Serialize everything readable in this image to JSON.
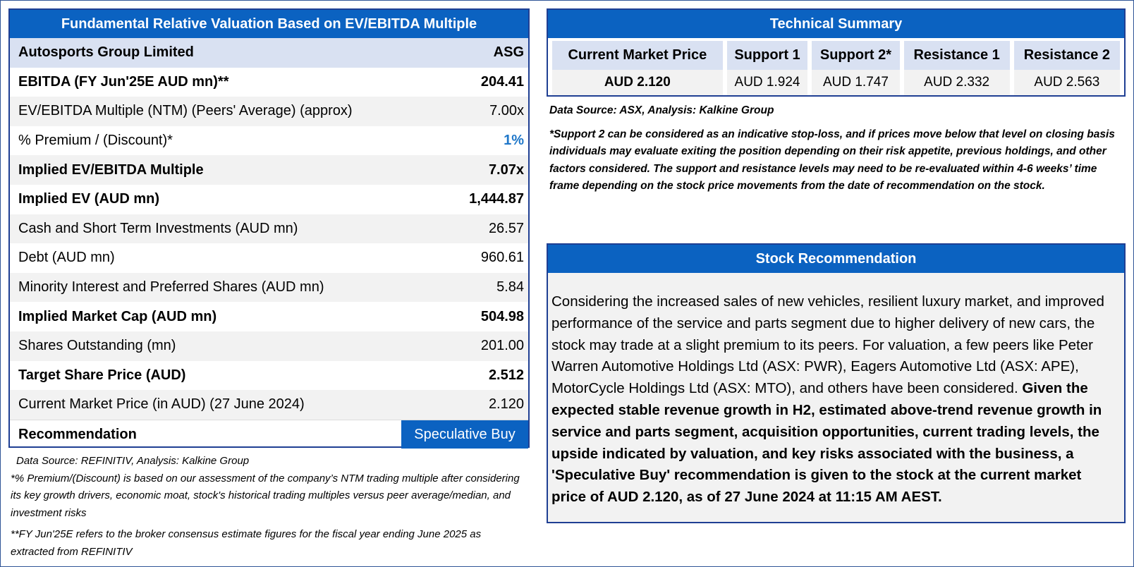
{
  "valuation": {
    "title": "Fundamental Relative Valuation Based on EV/EBITDA Multiple",
    "company": {
      "name": "Autosports Group Limited",
      "ticker": "ASG"
    },
    "rows": [
      {
        "label": "EBITDA (FY Jun'25E AUD mn)**",
        "value": "204.41"
      },
      {
        "label": "EV/EBITDA Multiple (NTM)  (Peers' Average) (approx)",
        "value": "7.00x"
      },
      {
        "label": "% Premium / (Discount)*",
        "value": "1%"
      },
      {
        "label": "Implied EV/EBITDA Multiple",
        "value": "7.07x"
      },
      {
        "label": "Implied EV (AUD mn)",
        "value": "1,444.87"
      },
      {
        "label": "Cash and Short Term Investments (AUD mn)",
        "value": "26.57"
      },
      {
        "label": "Debt (AUD mn)",
        "value": "960.61"
      },
      {
        "label": "Minority Interest and Preferred Shares (AUD mn)",
        "value": "5.84"
      },
      {
        "label": "Implied Market Cap (AUD mn)",
        "value": "504.98"
      },
      {
        "label": "Shares Outstanding (mn)",
        "value": "201.00"
      },
      {
        "label": "Target Share Price (AUD)",
        "value": "2.512"
      },
      {
        "label": "Current Market Price (in AUD) (27 June 2024)",
        "value": "2.120"
      }
    ],
    "recommendation": {
      "label": "Recommendation",
      "value": "Speculative Buy"
    },
    "accent_color": "#0b62c1",
    "premium_color": "#1f77c9"
  },
  "left_notes": {
    "source": "Data Source: REFINITIV, Analysis: Kalkine Group",
    "premium_note": "*% Premium/(Discount) is based on our assessment of the company’s NTM trading multiple after considering its key growth drivers, economic moat, stock's historical trading multiples versus peer average/median, and investment risks",
    "fy_note": "**FY Jun'25E refers to the broker consensus estimate figures for the fiscal year ending June 2025 as extracted from REFINITIV"
  },
  "technical": {
    "title": "Technical Summary",
    "headers": [
      "Current Market Price",
      "Support 1",
      "Support 2*",
      "Resistance 1",
      "Resistance 2"
    ],
    "values": [
      "AUD 2.120",
      "AUD 1.924",
      "AUD 1.747",
      "AUD 2.332",
      "AUD 2.563"
    ],
    "source": "Data Source: ASX, Analysis: Kalkine Group",
    "disclaimer": "*Support 2 can be considered as an indicative stop-loss, and if prices move below that level on closing basis individuals may evaluate exiting the position depending on their risk appetite, previous holdings, and other factors considered. The support and resistance levels may need to be re-evaluated within 4-6 weeks’ time frame depending on the stock price movements from the date of recommendation on the stock."
  },
  "recommendation_box": {
    "title": "Stock Recommendation",
    "text_plain": "Considering the increased sales of new vehicles, resilient luxury market, and improved performance of the service and parts segment due to higher delivery of new cars, the stock may trade at a slight premium to its peers. For valuation, a few peers like Peter Warren Automotive Holdings Ltd (ASX: PWR), Eagers Automotive Ltd (ASX: APE), MotorCycle Holdings Ltd (ASX: MTO), and others have been considered. ",
    "text_bold": "Given the expected stable revenue growth in H2, estimated above-trend revenue growth in service and parts segment, acquisition opportunities, current trading levels, the upside indicated by valuation, and key risks associated with the business, a 'Speculative Buy' recommendation is given to the stock at the current market price of AUD 2.120, as of 27 June 2024 at 11:15 AM AEST."
  }
}
